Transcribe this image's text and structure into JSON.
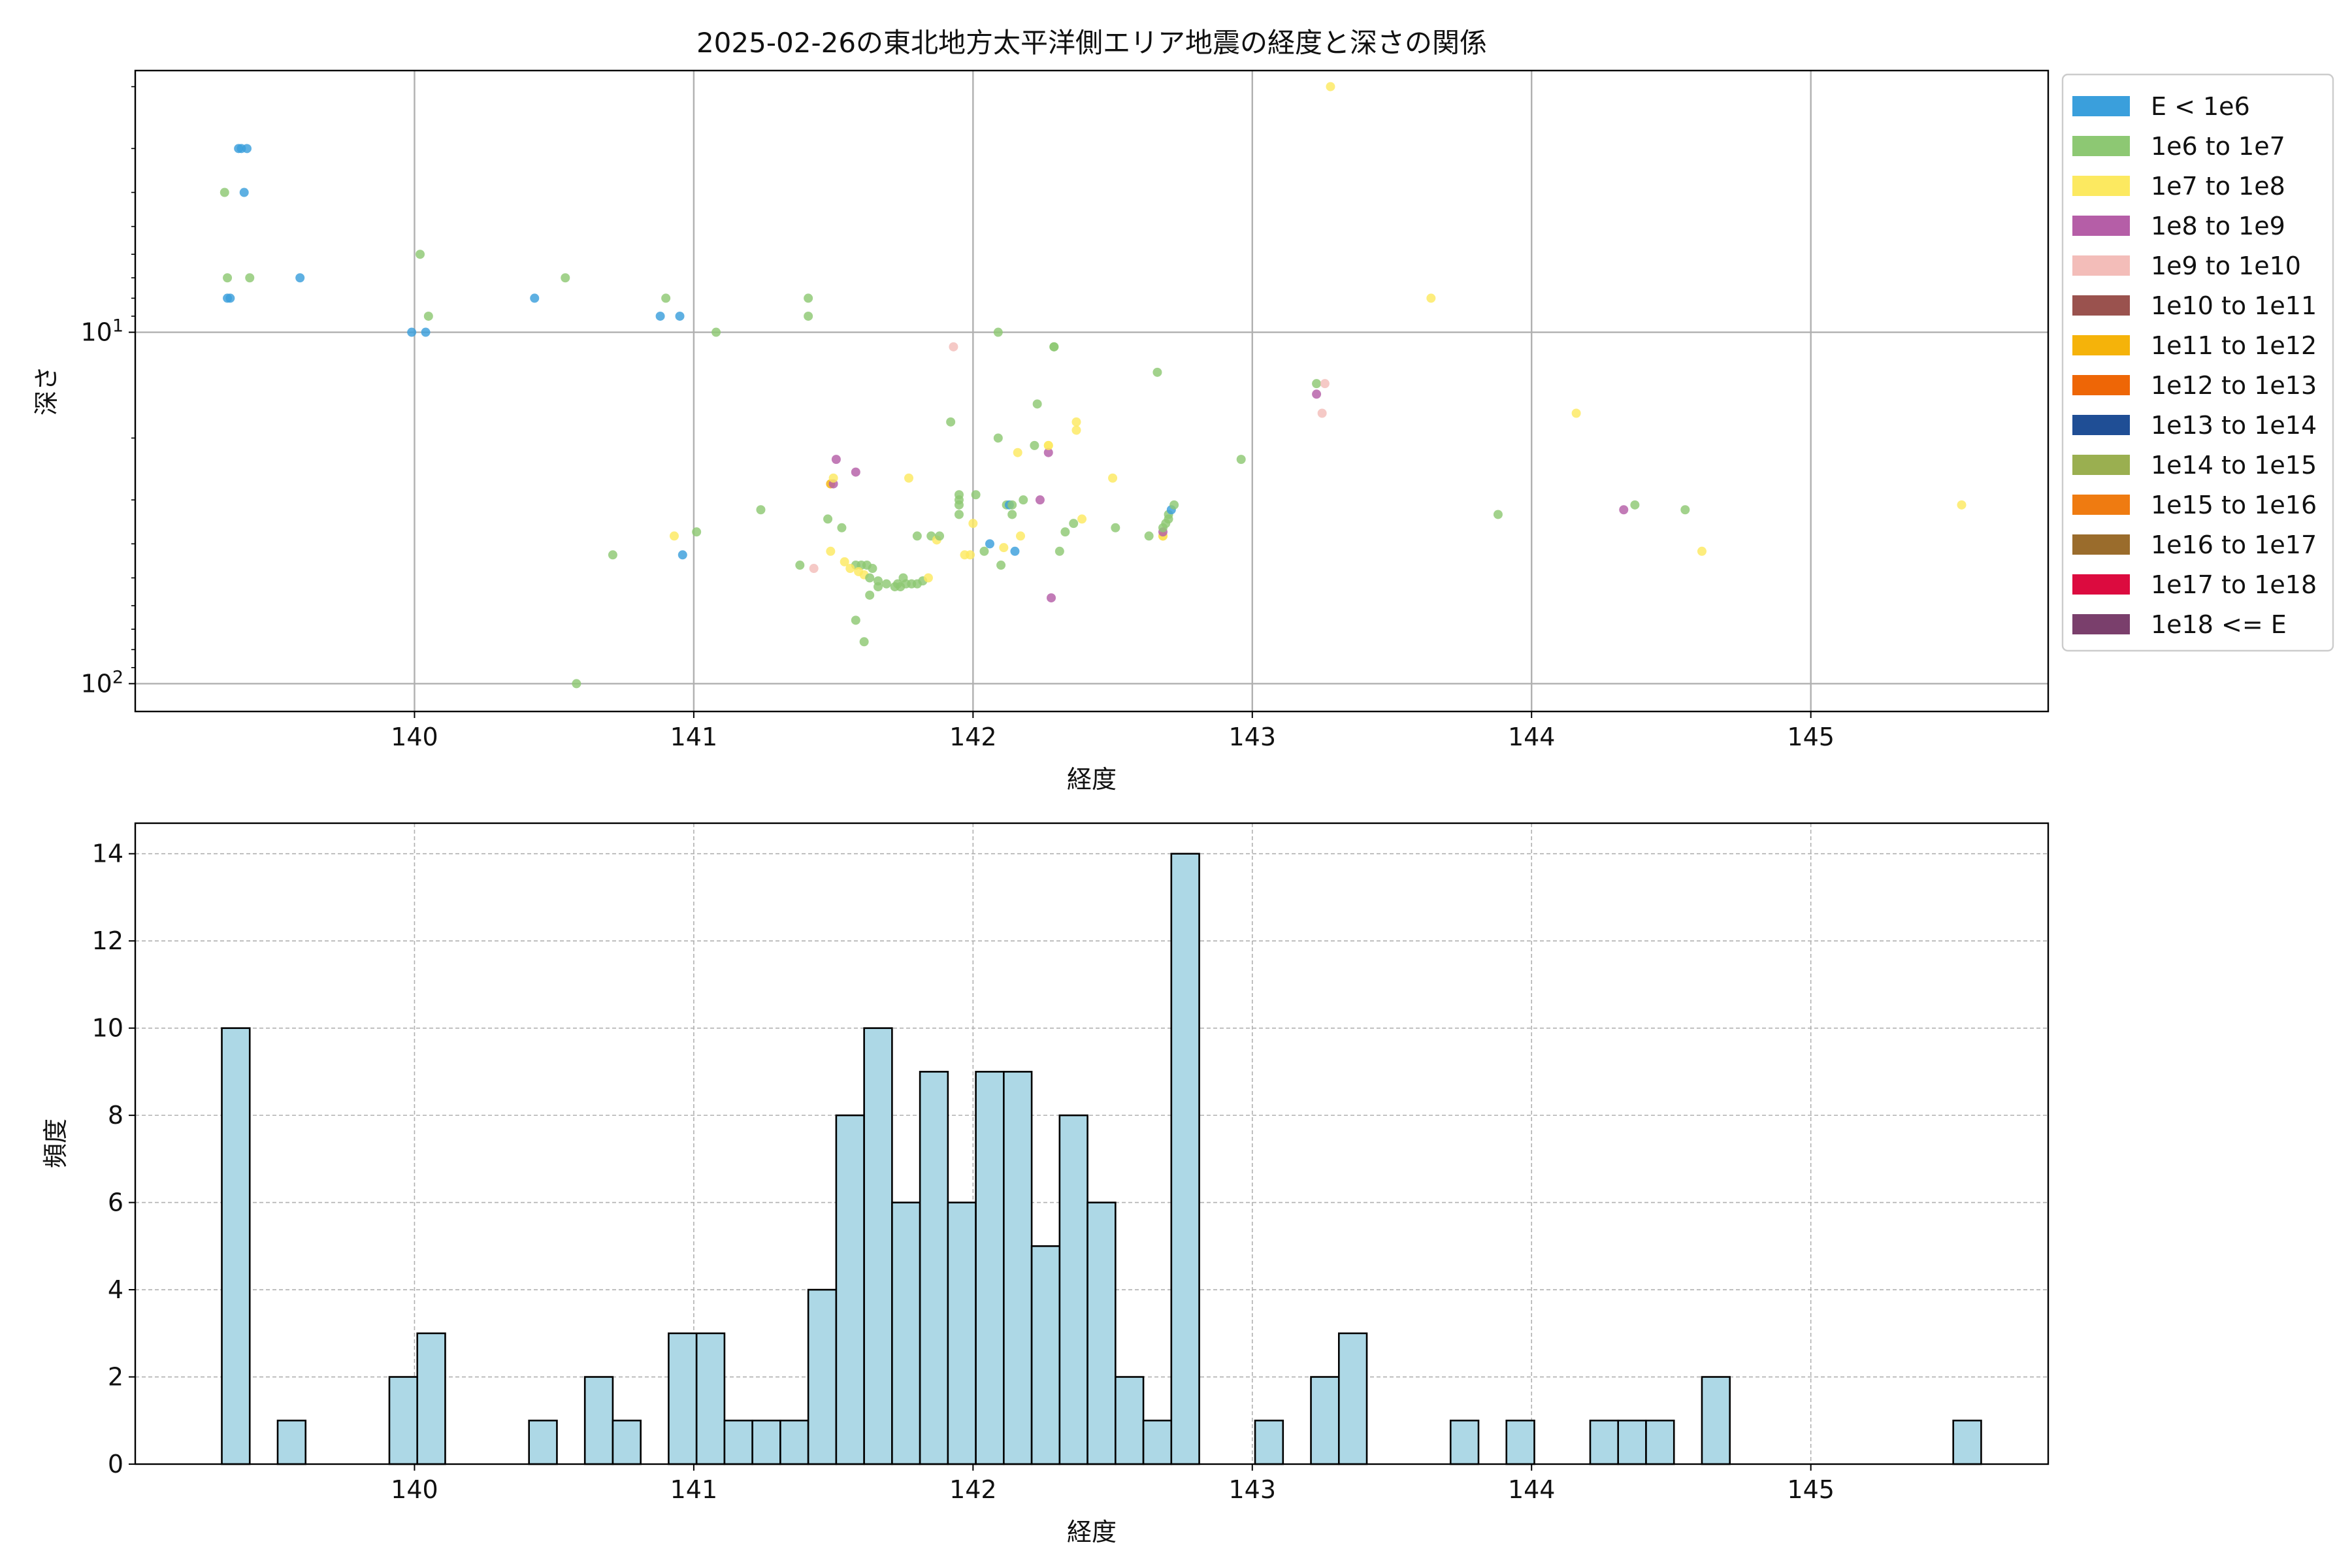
{
  "chart_data": [
    {
      "type": "scatter",
      "title": "2025-02-26の東北地方太平洋側エリア地震の経度と深さの関係",
      "xlabel": "経度",
      "ylabel": "深さ",
      "xlim": [
        139.0,
        145.85
      ],
      "ylim": [
        1.8,
        120
      ],
      "yscale": "log",
      "yaxis_inverted": true,
      "x_ticks": [
        140,
        141,
        142,
        143,
        144,
        145
      ],
      "x_tick_labels": [
        "140",
        "141",
        "142",
        "143",
        "144",
        "145"
      ],
      "y_ticks": [
        10,
        100
      ],
      "y_tick_labels": [
        "10^1",
        "10^2"
      ],
      "grid": true,
      "legend_position": "outside-right",
      "legend": [
        {
          "label": "E < 1e6",
          "color": "#3a9fdc"
        },
        {
          "label": "1e6 to 1e7",
          "color": "#8dc873"
        },
        {
          "label": "1e7 to 1e8",
          "color": "#fce960"
        },
        {
          "label": "1e8 to 1e9",
          "color": "#b55ea7"
        },
        {
          "label": "1e9 to 1e10",
          "color": "#f3bdb9"
        },
        {
          "label": "1e10 to 1e11",
          "color": "#9a524e"
        },
        {
          "label": "1e11 to 1e12",
          "color": "#f5b30a"
        },
        {
          "label": "1e12 to 1e13",
          "color": "#ee6606"
        },
        {
          "label": "1e13 to 1e14",
          "color": "#1f4e95"
        },
        {
          "label": "1e14 to 1e15",
          "color": "#9aaf50"
        },
        {
          "label": "1e15 to 1e16",
          "color": "#ef7b11"
        },
        {
          "label": "1e16 to 1e17",
          "color": "#9a6c2c"
        },
        {
          "label": "1e17 to 1e18",
          "color": "#dc0b3f"
        },
        {
          "label": "1e18 <= E",
          "color": "#7a3f6c"
        }
      ],
      "points": [
        {
          "x": 139.37,
          "y": 3.0,
          "c": 0
        },
        {
          "x": 139.38,
          "y": 3.0,
          "c": 0
        },
        {
          "x": 139.4,
          "y": 3.0,
          "c": 0
        },
        {
          "x": 139.32,
          "y": 4.0,
          "c": 1
        },
        {
          "x": 139.39,
          "y": 4.0,
          "c": 0
        },
        {
          "x": 139.33,
          "y": 7.0,
          "c": 1
        },
        {
          "x": 139.41,
          "y": 7.0,
          "c": 1
        },
        {
          "x": 139.59,
          "y": 7.0,
          "c": 0
        },
        {
          "x": 139.33,
          "y": 8.0,
          "c": 0
        },
        {
          "x": 139.34,
          "y": 8.0,
          "c": 0
        },
        {
          "x": 140.02,
          "y": 6.0,
          "c": 1
        },
        {
          "x": 140.05,
          "y": 9.0,
          "c": 1
        },
        {
          "x": 139.99,
          "y": 10.0,
          "c": 0
        },
        {
          "x": 140.04,
          "y": 10.0,
          "c": 0
        },
        {
          "x": 140.43,
          "y": 8.0,
          "c": 0
        },
        {
          "x": 140.54,
          "y": 7.0,
          "c": 1
        },
        {
          "x": 140.88,
          "y": 9.0,
          "c": 0
        },
        {
          "x": 140.95,
          "y": 9.0,
          "c": 0
        },
        {
          "x": 140.9,
          "y": 8.0,
          "c": 1
        },
        {
          "x": 141.08,
          "y": 10.0,
          "c": 1
        },
        {
          "x": 140.58,
          "y": 100.0,
          "c": 1
        },
        {
          "x": 140.71,
          "y": 43.0,
          "c": 1
        },
        {
          "x": 140.93,
          "y": 38.0,
          "c": 2
        },
        {
          "x": 140.96,
          "y": 43.0,
          "c": 0
        },
        {
          "x": 141.01,
          "y": 37.0,
          "c": 1
        },
        {
          "x": 141.24,
          "y": 32.0,
          "c": 1
        },
        {
          "x": 141.41,
          "y": 8.0,
          "c": 1
        },
        {
          "x": 141.41,
          "y": 9.0,
          "c": 1
        },
        {
          "x": 141.38,
          "y": 46.0,
          "c": 1
        },
        {
          "x": 141.43,
          "y": 47.0,
          "c": 4
        },
        {
          "x": 141.48,
          "y": 34.0,
          "c": 1
        },
        {
          "x": 141.49,
          "y": 27.0,
          "c": 6
        },
        {
          "x": 141.5,
          "y": 27.0,
          "c": 3
        },
        {
          "x": 141.51,
          "y": 23.0,
          "c": 3
        },
        {
          "x": 141.5,
          "y": 26.0,
          "c": 2
        },
        {
          "x": 141.49,
          "y": 42.0,
          "c": 2
        },
        {
          "x": 141.53,
          "y": 36.0,
          "c": 1
        },
        {
          "x": 141.54,
          "y": 45.0,
          "c": 2
        },
        {
          "x": 141.58,
          "y": 46.0,
          "c": 1
        },
        {
          "x": 141.6,
          "y": 46.0,
          "c": 1
        },
        {
          "x": 141.62,
          "y": 46.0,
          "c": 1
        },
        {
          "x": 141.56,
          "y": 47.0,
          "c": 2
        },
        {
          "x": 141.59,
          "y": 48.0,
          "c": 2
        },
        {
          "x": 141.61,
          "y": 49.0,
          "c": 2
        },
        {
          "x": 141.63,
          "y": 50.0,
          "c": 1
        },
        {
          "x": 141.64,
          "y": 47.0,
          "c": 1
        },
        {
          "x": 141.66,
          "y": 53.0,
          "c": 1
        },
        {
          "x": 141.63,
          "y": 56.0,
          "c": 1
        },
        {
          "x": 141.58,
          "y": 66.0,
          "c": 1
        },
        {
          "x": 141.61,
          "y": 76.0,
          "c": 1
        },
        {
          "x": 141.66,
          "y": 51.0,
          "c": 1
        },
        {
          "x": 141.69,
          "y": 52.0,
          "c": 1
        },
        {
          "x": 141.72,
          "y": 53.0,
          "c": 1
        },
        {
          "x": 141.73,
          "y": 52.0,
          "c": 1
        },
        {
          "x": 141.75,
          "y": 50.0,
          "c": 1
        },
        {
          "x": 141.74,
          "y": 53.0,
          "c": 1
        },
        {
          "x": 141.76,
          "y": 52.0,
          "c": 1
        },
        {
          "x": 141.78,
          "y": 52.0,
          "c": 1
        },
        {
          "x": 141.8,
          "y": 52.0,
          "c": 1
        },
        {
          "x": 141.82,
          "y": 51.0,
          "c": 1
        },
        {
          "x": 141.84,
          "y": 50.0,
          "c": 2
        },
        {
          "x": 141.58,
          "y": 25.0,
          "c": 3
        },
        {
          "x": 141.77,
          "y": 26.0,
          "c": 2
        },
        {
          "x": 141.8,
          "y": 38.0,
          "c": 1
        },
        {
          "x": 141.85,
          "y": 38.0,
          "c": 1
        },
        {
          "x": 141.87,
          "y": 39.0,
          "c": 2
        },
        {
          "x": 141.88,
          "y": 38.0,
          "c": 1
        },
        {
          "x": 141.92,
          "y": 18.0,
          "c": 1
        },
        {
          "x": 141.93,
          "y": 11.0,
          "c": 4
        },
        {
          "x": 141.95,
          "y": 29.0,
          "c": 1
        },
        {
          "x": 141.95,
          "y": 30.0,
          "c": 1
        },
        {
          "x": 141.95,
          "y": 31.0,
          "c": 1
        },
        {
          "x": 141.95,
          "y": 33.0,
          "c": 1
        },
        {
          "x": 141.97,
          "y": 43.0,
          "c": 2
        },
        {
          "x": 141.99,
          "y": 43.0,
          "c": 2
        },
        {
          "x": 142.0,
          "y": 35.0,
          "c": 2
        },
        {
          "x": 142.01,
          "y": 29.0,
          "c": 1
        },
        {
          "x": 142.04,
          "y": 42.0,
          "c": 1
        },
        {
          "x": 142.06,
          "y": 40.0,
          "c": 0
        },
        {
          "x": 142.09,
          "y": 10.0,
          "c": 1
        },
        {
          "x": 142.09,
          "y": 20.0,
          "c": 1
        },
        {
          "x": 142.1,
          "y": 46.0,
          "c": 1
        },
        {
          "x": 142.11,
          "y": 41.0,
          "c": 2
        },
        {
          "x": 142.12,
          "y": 31.0,
          "c": 1
        },
        {
          "x": 142.13,
          "y": 31.0,
          "c": 0
        },
        {
          "x": 142.14,
          "y": 33.0,
          "c": 1
        },
        {
          "x": 142.14,
          "y": 31.0,
          "c": 1
        },
        {
          "x": 142.15,
          "y": 42.0,
          "c": 0
        },
        {
          "x": 142.16,
          "y": 22.0,
          "c": 2
        },
        {
          "x": 142.17,
          "y": 38.0,
          "c": 2
        },
        {
          "x": 142.18,
          "y": 30.0,
          "c": 1
        },
        {
          "x": 142.22,
          "y": 21.0,
          "c": 1
        },
        {
          "x": 142.23,
          "y": 16.0,
          "c": 1
        },
        {
          "x": 142.24,
          "y": 30.0,
          "c": 3
        },
        {
          "x": 142.27,
          "y": 21.0,
          "c": 2
        },
        {
          "x": 142.27,
          "y": 22.0,
          "c": 3
        },
        {
          "x": 142.27,
          "y": 21.0,
          "c": 2
        },
        {
          "x": 142.28,
          "y": 57.0,
          "c": 3
        },
        {
          "x": 142.29,
          "y": 11.0,
          "c": 1
        },
        {
          "x": 142.29,
          "y": 11.0,
          "c": 1
        },
        {
          "x": 142.31,
          "y": 42.0,
          "c": 1
        },
        {
          "x": 142.33,
          "y": 37.0,
          "c": 1
        },
        {
          "x": 142.36,
          "y": 35.0,
          "c": 1
        },
        {
          "x": 142.37,
          "y": 19.0,
          "c": 2
        },
        {
          "x": 142.37,
          "y": 18.0,
          "c": 2
        },
        {
          "x": 142.39,
          "y": 34.0,
          "c": 2
        },
        {
          "x": 142.5,
          "y": 26.0,
          "c": 2
        },
        {
          "x": 142.51,
          "y": 36.0,
          "c": 1
        },
        {
          "x": 142.63,
          "y": 38.0,
          "c": 1
        },
        {
          "x": 142.66,
          "y": 13.0,
          "c": 1
        },
        {
          "x": 142.68,
          "y": 38.0,
          "c": 6
        },
        {
          "x": 142.68,
          "y": 38.0,
          "c": 2
        },
        {
          "x": 142.68,
          "y": 37.0,
          "c": 3
        },
        {
          "x": 142.68,
          "y": 36.0,
          "c": 1
        },
        {
          "x": 142.69,
          "y": 35.0,
          "c": 1
        },
        {
          "x": 142.7,
          "y": 34.0,
          "c": 1
        },
        {
          "x": 142.7,
          "y": 33.0,
          "c": 1
        },
        {
          "x": 142.71,
          "y": 32.0,
          "c": 0
        },
        {
          "x": 142.72,
          "y": 31.0,
          "c": 1
        },
        {
          "x": 142.96,
          "y": 23.0,
          "c": 1
        },
        {
          "x": 143.23,
          "y": 14.0,
          "c": 1
        },
        {
          "x": 143.23,
          "y": 15.0,
          "c": 3
        },
        {
          "x": 143.26,
          "y": 14.0,
          "c": 4
        },
        {
          "x": 143.25,
          "y": 17.0,
          "c": 4
        },
        {
          "x": 143.28,
          "y": 2.0,
          "c": 2
        },
        {
          "x": 143.64,
          "y": 8.0,
          "c": 2
        },
        {
          "x": 143.88,
          "y": 33.0,
          "c": 1
        },
        {
          "x": 144.16,
          "y": 17.0,
          "c": 2
        },
        {
          "x": 144.33,
          "y": 32.0,
          "c": 3
        },
        {
          "x": 144.37,
          "y": 31.0,
          "c": 1
        },
        {
          "x": 144.55,
          "y": 32.0,
          "c": 1
        },
        {
          "x": 144.61,
          "y": 42.0,
          "c": 2
        },
        {
          "x": 145.54,
          "y": 31.0,
          "c": 2
        }
      ]
    },
    {
      "type": "bar",
      "subtype": "histogram",
      "title": "",
      "xlabel": "経度",
      "ylabel": "頻度",
      "xlim": [
        139.0,
        145.85
      ],
      "ylim": [
        0,
        14.7
      ],
      "x_ticks": [
        140,
        141,
        142,
        143,
        144,
        145
      ],
      "x_tick_labels": [
        "140",
        "141",
        "142",
        "143",
        "144",
        "145"
      ],
      "y_ticks": [
        0,
        2,
        4,
        6,
        8,
        10,
        12,
        14
      ],
      "y_tick_labels": [
        "0",
        "2",
        "4",
        "6",
        "8",
        "10",
        "12",
        "14"
      ],
      "grid": true,
      "bar_color": "#add8e6",
      "edge_color": "#000000",
      "bin_start": 139.31,
      "bin_width": 0.1,
      "counts": [
        10,
        0,
        1,
        0,
        0,
        0,
        2,
        3,
        0,
        0,
        0,
        1,
        0,
        2,
        1,
        0,
        3,
        3,
        1,
        1,
        1,
        4,
        8,
        10,
        6,
        9,
        6,
        9,
        9,
        5,
        8,
        6,
        2,
        1,
        14,
        0,
        0,
        1,
        0,
        2,
        3,
        0,
        0,
        0,
        1,
        0,
        1,
        0,
        0,
        1,
        1,
        1,
        0,
        2,
        0,
        0,
        0,
        0,
        0,
        0,
        0,
        0,
        1
      ]
    }
  ]
}
